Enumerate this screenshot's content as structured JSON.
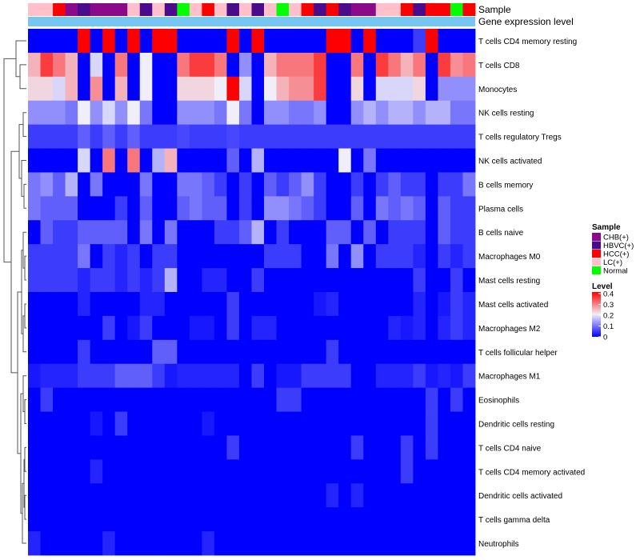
{
  "chart_data": {
    "type": "heatmap",
    "title": "",
    "annotation_tracks": [
      "Sample",
      "Gene expression level"
    ],
    "rows": [
      "T cells CD4 memory resting",
      "T cells CD8",
      "Monocytes",
      "NK cells resting",
      "T cells regulatory  Tregs",
      "NK cells activated",
      "B cells memory",
      "Plasma cells",
      "B cells naive",
      "Macrophages M0",
      "Mast cells resting",
      "Mast cells activated",
      "Macrophages M2",
      "T cells follicular helper",
      "Macrophages M1",
      "Eosinophils",
      "Dendritic cells resting",
      "T cells CD4 naive",
      "T cells CD4 memory activated",
      "Dendritic cells activated",
      "T cells gamma delta",
      "Neutrophils"
    ],
    "sample_groups": [
      "LC(+)",
      "LC(+)",
      "HCC(+)",
      "CHB(+)",
      "HBVC(+)",
      "CHB(+)",
      "CHB(+)",
      "CHB(+)",
      "LC(+)",
      "HBVC(+)",
      "LC(+)",
      "HBVC(+)",
      "Normal",
      "LC(+)",
      "HCC(+)",
      "LC(+)",
      "HBVC(+)",
      "LC(+)",
      "HBVC(+)",
      "LC(+)",
      "Normal",
      "LC(+)",
      "HCC(+)",
      "HBVC(+)",
      "HCC(+)",
      "HBVC(+)",
      "CHB(+)",
      "CHB(+)",
      "LC(+)",
      "LC(+)",
      "HCC(+)",
      "HBVC(+)",
      "HCC(+)",
      "HCC(+)",
      "Normal",
      "HCC(+)"
    ],
    "values": [
      [
        0,
        0,
        0,
        0,
        0.4,
        0,
        0.4,
        0,
        0.4,
        0,
        0.4,
        0.4,
        0,
        0,
        0,
        0,
        0.4,
        0,
        0.4,
        0,
        0,
        0,
        0,
        0,
        0.4,
        0.4,
        0,
        0.4,
        0,
        0,
        0,
        0.05,
        0.4,
        0,
        0,
        0
      ],
      [
        0.25,
        0.35,
        0.3,
        0.25,
        0,
        0.18,
        0,
        0.3,
        0,
        0.2,
        0,
        0,
        0.3,
        0.35,
        0.35,
        0.3,
        0,
        0.12,
        0,
        0.25,
        0.3,
        0.3,
        0.3,
        0.35,
        0,
        0,
        0.3,
        0,
        0.35,
        0.3,
        0.25,
        0.3,
        0,
        0.35,
        0.28,
        0.3
      ],
      [
        0.22,
        0.22,
        0.18,
        0.25,
        0,
        0.28,
        0,
        0.25,
        0,
        0.2,
        0,
        0,
        0.22,
        0.22,
        0.22,
        0.2,
        0.4,
        0.18,
        0,
        0.2,
        0.25,
        0.28,
        0.28,
        0.35,
        0,
        0,
        0.22,
        0,
        0.18,
        0.18,
        0.18,
        0.22,
        0,
        0.12,
        0.12,
        0.12
      ],
      [
        0.12,
        0.12,
        0.12,
        0.1,
        0.2,
        0.12,
        0.18,
        0.12,
        0.2,
        0.1,
        0,
        0,
        0.12,
        0.12,
        0.12,
        0.1,
        0.2,
        0.1,
        0,
        0.12,
        0.12,
        0.1,
        0.1,
        0.12,
        0,
        0,
        0.12,
        0.15,
        0.12,
        0.15,
        0.15,
        0.12,
        0.15,
        0.15,
        0.1,
        0.1
      ],
      [
        0.05,
        0.05,
        0.05,
        0.05,
        0.08,
        0.05,
        0.08,
        0.05,
        0.08,
        0.05,
        0.05,
        0.05,
        0.06,
        0.05,
        0.05,
        0.05,
        0.06,
        0.05,
        0.05,
        0.05,
        0.05,
        0.05,
        0.05,
        0.05,
        0.05,
        0.05,
        0.05,
        0.05,
        0.05,
        0.05,
        0.05,
        0.05,
        0.05,
        0.05,
        0.05,
        0.05
      ],
      [
        0,
        0,
        0,
        0,
        0.18,
        0,
        0.3,
        0,
        0.3,
        0,
        0.15,
        0.25,
        0,
        0,
        0,
        0,
        0.08,
        0,
        0.15,
        0,
        0,
        0,
        0,
        0,
        0,
        0.2,
        0,
        0.1,
        0,
        0,
        0,
        0,
        0,
        0,
        0,
        0
      ],
      [
        0.1,
        0.12,
        0.08,
        0.15,
        0,
        0.1,
        0,
        0,
        0,
        0.1,
        0,
        0,
        0.1,
        0.1,
        0.08,
        0.05,
        0,
        0.05,
        0,
        0.08,
        0.05,
        0.08,
        0.12,
        0.05,
        0,
        0,
        0.05,
        0,
        0.05,
        0.08,
        0.05,
        0.05,
        0,
        0.05,
        0.05,
        0.1
      ],
      [
        0.1,
        0.08,
        0.08,
        0.08,
        0,
        0,
        0,
        0.05,
        0,
        0.08,
        0,
        0,
        0.08,
        0.1,
        0.08,
        0.08,
        0,
        0.05,
        0,
        0.12,
        0.12,
        0.1,
        0.08,
        0.05,
        0,
        0,
        0.08,
        0,
        0.1,
        0.08,
        0.1,
        0.08,
        0,
        0.08,
        0.05,
        0.05
      ],
      [
        0,
        0.08,
        0.05,
        0.05,
        0.08,
        0.08,
        0.08,
        0.08,
        0,
        0.1,
        0,
        0.1,
        0,
        0,
        0,
        0.05,
        0.05,
        0.08,
        0.15,
        0,
        0.05,
        0,
        0,
        0,
        0.08,
        0.08,
        0,
        0.08,
        0,
        0.05,
        0.05,
        0.05,
        0,
        0.08,
        0.05,
        0.05
      ],
      [
        0.05,
        0.05,
        0.05,
        0.05,
        0.1,
        0,
        0.05,
        0.03,
        0.05,
        0,
        0.05,
        0.05,
        0,
        0,
        0,
        0,
        0,
        0,
        0,
        0.05,
        0.05,
        0.05,
        0,
        0,
        0.1,
        0,
        0.12,
        0,
        0.05,
        0.05,
        0.05,
        0.03,
        0,
        0.05,
        0.03,
        0.05
      ],
      [
        0.05,
        0.05,
        0.05,
        0.05,
        0.03,
        0.05,
        0.05,
        0.03,
        0.05,
        0.03,
        0.05,
        0.15,
        0,
        0,
        0.03,
        0.03,
        0,
        0,
        0.05,
        0,
        0,
        0,
        0,
        0,
        0,
        0,
        0,
        0,
        0,
        0,
        0,
        0.05,
        0,
        0,
        0.05,
        0
      ],
      [
        0,
        0,
        0,
        0,
        0.03,
        0,
        0,
        0,
        0,
        0.03,
        0.03,
        0,
        0,
        0,
        0,
        0,
        0.05,
        0,
        0,
        0,
        0,
        0,
        0,
        0.02,
        0.03,
        0,
        0,
        0,
        0,
        0,
        0,
        0.03,
        0,
        0.02,
        0.05,
        0.03
      ],
      [
        0,
        0,
        0,
        0,
        0,
        0,
        0.05,
        0,
        0.02,
        0.05,
        0,
        0,
        0,
        0.02,
        0.02,
        0,
        0.05,
        0,
        0.03,
        0.03,
        0,
        0,
        0,
        0,
        0,
        0,
        0,
        0,
        0,
        0.03,
        0.02,
        0.03,
        0,
        0.03,
        0.05,
        0.03
      ],
      [
        0,
        0,
        0,
        0,
        0.05,
        0,
        0,
        0,
        0,
        0,
        0.08,
        0.08,
        0,
        0,
        0,
        0,
        0,
        0,
        0,
        0,
        0,
        0,
        0,
        0,
        0.05,
        0,
        0,
        0,
        0,
        0,
        0,
        0,
        0,
        0,
        0,
        0
      ],
      [
        0.02,
        0.03,
        0.03,
        0.03,
        0.05,
        0.05,
        0.05,
        0.08,
        0.08,
        0.08,
        0.05,
        0.02,
        0.03,
        0.03,
        0.03,
        0.03,
        0.03,
        0,
        0.05,
        0,
        0.02,
        0.02,
        0.05,
        0.05,
        0.05,
        0.05,
        0,
        0,
        0.03,
        0.03,
        0.03,
        0.05,
        0.02,
        0.03,
        0.02,
        0.05
      ],
      [
        0,
        0.05,
        0,
        0,
        0,
        0,
        0,
        0,
        0,
        0,
        0,
        0,
        0,
        0,
        0,
        0,
        0,
        0,
        0,
        0,
        0.05,
        0.05,
        0,
        0,
        0,
        0,
        0,
        0,
        0,
        0,
        0,
        0,
        0.05,
        0,
        0.05,
        0
      ],
      [
        0,
        0,
        0,
        0,
        0,
        0.02,
        0,
        0.05,
        0,
        0,
        0,
        0,
        0,
        0,
        0.02,
        0,
        0,
        0,
        0,
        0,
        0,
        0,
        0,
        0,
        0,
        0,
        0,
        0,
        0,
        0,
        0,
        0,
        0.05,
        0,
        0,
        0
      ],
      [
        0,
        0,
        0,
        0,
        0,
        0,
        0,
        0,
        0,
        0,
        0,
        0,
        0,
        0,
        0,
        0,
        0.05,
        0,
        0,
        0,
        0,
        0,
        0,
        0,
        0,
        0,
        0.05,
        0,
        0,
        0,
        0.05,
        0,
        0.05,
        0,
        0,
        0
      ],
      [
        0,
        0,
        0,
        0,
        0,
        0.03,
        0,
        0,
        0,
        0,
        0,
        0,
        0,
        0,
        0,
        0,
        0,
        0,
        0,
        0,
        0,
        0,
        0,
        0,
        0,
        0,
        0,
        0,
        0,
        0,
        0.05,
        0,
        0,
        0,
        0,
        0
      ],
      [
        0,
        0,
        0,
        0,
        0,
        0,
        0,
        0,
        0,
        0,
        0,
        0,
        0,
        0,
        0,
        0,
        0,
        0,
        0,
        0,
        0,
        0,
        0,
        0,
        0.03,
        0,
        0.03,
        0,
        0,
        0,
        0,
        0,
        0,
        0,
        0,
        0
      ],
      [
        0,
        0,
        0,
        0,
        0,
        0,
        0,
        0,
        0,
        0,
        0,
        0,
        0,
        0,
        0,
        0,
        0,
        0,
        0,
        0,
        0,
        0,
        0,
        0,
        0,
        0,
        0,
        0,
        0,
        0,
        0,
        0,
        0,
        0,
        0,
        0
      ],
      [
        0.03,
        0,
        0,
        0,
        0,
        0,
        0.03,
        0,
        0,
        0,
        0,
        0,
        0,
        0,
        0.03,
        0,
        0,
        0,
        0,
        0,
        0,
        0,
        0,
        0,
        0,
        0,
        0,
        0,
        0,
        0,
        0,
        0,
        0,
        0,
        0,
        0
      ]
    ],
    "color_scale": {
      "min": 0,
      "max": 0.4,
      "stops": [
        {
          "value": 0,
          "color": "#0000ff"
        },
        {
          "value": 0.2,
          "color": "#f0eef8"
        },
        {
          "value": 0.4,
          "color": "#ff0000"
        }
      ]
    },
    "expression_track_color": "#75c6f3",
    "legend_sample": {
      "title": "Sample",
      "entries": [
        {
          "label": "CHB(+)",
          "color": "#8b0a8a"
        },
        {
          "label": "HBVC(+)",
          "color": "#4a0b8c"
        },
        {
          "label": "HCC(+)",
          "color": "#ff0000"
        },
        {
          "label": "LC(+)",
          "color": "#ffc0cb"
        },
        {
          "label": "Normal",
          "color": "#00ff00"
        }
      ]
    },
    "legend_level": {
      "title": "Level",
      "ticks": [
        "0.4",
        "0.3",
        "0.2",
        "0.1",
        "0"
      ]
    },
    "legend_placement": "right",
    "dendrogram": "rows-left"
  }
}
